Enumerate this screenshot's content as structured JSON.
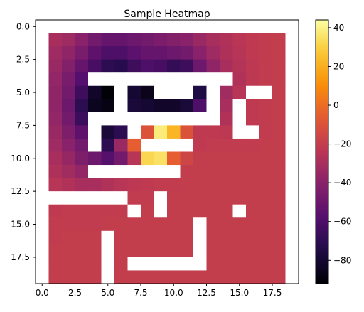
{
  "chart_data": {
    "type": "heatmap",
    "title": "Sample Heatmap",
    "xlabel": "",
    "ylabel": "",
    "colormap": "inferno",
    "color_range": [
      -92,
      44
    ],
    "xlim": [
      -0.5,
      19.5
    ],
    "ylim": [
      19.5,
      -0.5
    ],
    "x_ticks": [
      0,
      2.5,
      5,
      7.5,
      10,
      12.5,
      15,
      17.5
    ],
    "x_tick_labels": [
      "0.0",
      "2.5",
      "5.0",
      "7.5",
      "10.0",
      "12.5",
      "15.0",
      "17.5"
    ],
    "y_ticks": [
      0,
      2.5,
      5,
      7.5,
      10,
      12.5,
      15,
      17.5
    ],
    "y_tick_labels": [
      "0.0",
      "2.5",
      "5.0",
      "7.5",
      "10.0",
      "12.5",
      "15.0",
      "17.5"
    ],
    "colorbar_ticks": [
      40,
      20,
      0,
      -20,
      -40,
      -60,
      -80
    ],
    "colorbar_tick_labels": [
      "40",
      "20",
      "0",
      "−20",
      "−40",
      "−60",
      "−80"
    ],
    "grid": false,
    "missing_value_color": "#ffffff",
    "grid_values": [
      [
        null,
        null,
        null,
        null,
        null,
        null,
        null,
        null,
        null,
        null,
        null,
        null,
        null,
        null,
        null,
        null,
        null,
        null,
        null,
        null
      ],
      [
        null,
        -30,
        -33,
        -40,
        -48,
        -52,
        -52,
        -50,
        -48,
        -45,
        -42,
        -40,
        -35,
        -30,
        -27,
        -24,
        -22,
        -21,
        -20,
        null
      ],
      [
        null,
        -33,
        -38,
        -46,
        -55,
        -60,
        -60,
        -56,
        -52,
        -52,
        -50,
        -48,
        -40,
        -33,
        -28,
        -25,
        -22,
        -21,
        -20,
        null
      ],
      [
        null,
        -35,
        -42,
        -52,
        -62,
        -70,
        -72,
        -65,
        -60,
        -62,
        -68,
        -65,
        -50,
        -38,
        -30,
        -26,
        -23,
        -21,
        -20,
        null
      ],
      [
        null,
        -37,
        -46,
        -58,
        null,
        null,
        null,
        null,
        null,
        null,
        null,
        null,
        null,
        null,
        null,
        -27,
        -23,
        -21,
        -20,
        null
      ],
      [
        null,
        -38,
        -48,
        -65,
        -82,
        -91,
        null,
        -80,
        -86,
        null,
        null,
        null,
        -75,
        null,
        -32,
        -25,
        null,
        null,
        -20,
        null
      ],
      [
        null,
        -38,
        -50,
        -70,
        -85,
        -88,
        null,
        -78,
        -80,
        -82,
        -82,
        -78,
        -60,
        null,
        -30,
        null,
        -22,
        -21,
        -20,
        null
      ],
      [
        null,
        -37,
        -48,
        -66,
        null,
        null,
        null,
        null,
        null,
        null,
        null,
        null,
        null,
        null,
        -27,
        null,
        -22,
        -21,
        -20,
        null
      ],
      [
        null,
        -35,
        -44,
        -55,
        null,
        -78,
        -70,
        null,
        -10,
        38,
        22,
        -10,
        -22,
        -22,
        -23,
        null,
        null,
        -21,
        -20,
        null
      ],
      [
        null,
        -33,
        -40,
        -48,
        null,
        -70,
        -35,
        -5,
        null,
        null,
        null,
        null,
        -22,
        -21,
        -21,
        -21,
        -21,
        -20,
        -20,
        null
      ],
      [
        null,
        -30,
        -36,
        -44,
        -50,
        -58,
        -48,
        -25,
        32,
        35,
        -5,
        -16,
        -20,
        -20,
        -20,
        -20,
        -20,
        -20,
        -20,
        null
      ],
      [
        null,
        -28,
        -32,
        -37,
        null,
        null,
        null,
        null,
        null,
        null,
        null,
        -20,
        -20,
        -20,
        -20,
        -20,
        -20,
        -20,
        -20,
        null
      ],
      [
        null,
        -25,
        -27,
        -30,
        -30,
        -27,
        -25,
        -23,
        -22,
        -21,
        -21,
        -20,
        -20,
        -20,
        -20,
        -20,
        -20,
        -20,
        -20,
        null
      ],
      [
        null,
        null,
        null,
        null,
        null,
        null,
        null,
        -21,
        -21,
        null,
        -20,
        -20,
        -20,
        -20,
        -20,
        -20,
        -20,
        -20,
        -20,
        null
      ],
      [
        null,
        -22,
        -21,
        -21,
        -21,
        -21,
        -21,
        null,
        -20,
        null,
        -20,
        -20,
        -20,
        -20,
        -20,
        null,
        -20,
        -20,
        -20,
        null
      ],
      [
        null,
        -21,
        -21,
        -21,
        -21,
        -20,
        -20,
        -20,
        -20,
        -20,
        -20,
        -20,
        null,
        -20,
        -20,
        -20,
        -20,
        -20,
        -20,
        null
      ],
      [
        null,
        -21,
        -20,
        -20,
        -20,
        null,
        -20,
        -20,
        -20,
        -20,
        -20,
        -20,
        null,
        -20,
        -20,
        -20,
        -20,
        -20,
        -20,
        null
      ],
      [
        null,
        -20,
        -20,
        -20,
        -20,
        null,
        -20,
        -20,
        -20,
        -20,
        -20,
        -20,
        null,
        -20,
        -20,
        -20,
        -20,
        -20,
        -20,
        null
      ],
      [
        null,
        -20,
        -20,
        -20,
        -20,
        null,
        -20,
        null,
        null,
        null,
        null,
        null,
        null,
        -20,
        -20,
        -20,
        -20,
        -20,
        -20,
        null
      ],
      [
        null,
        -20,
        -20,
        -20,
        -20,
        null,
        -20,
        -20,
        -20,
        -20,
        -20,
        -20,
        -20,
        -20,
        -20,
        -20,
        -20,
        -20,
        -20,
        null
      ],
      [
        null,
        null,
        null,
        null,
        null,
        null,
        null,
        null,
        null,
        null,
        null,
        null,
        null,
        null,
        null,
        null,
        null,
        null,
        null,
        null
      ]
    ]
  }
}
